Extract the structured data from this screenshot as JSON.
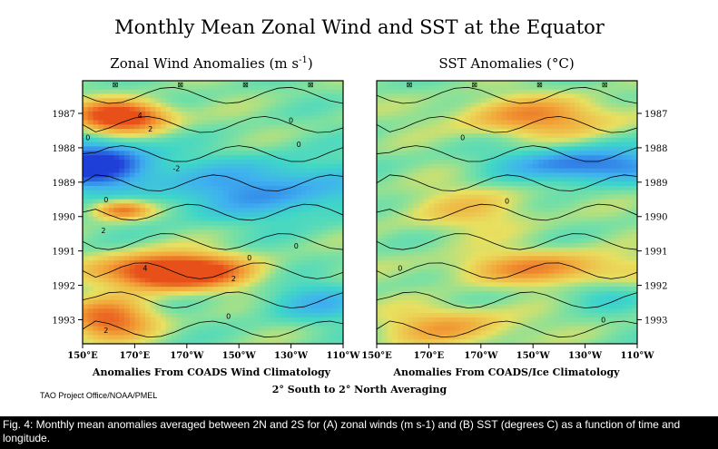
{
  "main_title": "Monthly Mean Zonal Wind and SST at the Equator",
  "credit": "TAO Project Office/NOAA/PMEL",
  "averaging_note": "2° South to 2° North Averaging",
  "caption": "Fig. 4: Monthly mean anomalies averaged between 2N and 2S for (A) zonal winds (m s-1) and (B) SST (degrees C) as a function of time and longitude.",
  "colors": {
    "strong_negative": "#1f3fd8",
    "negative": "#3fb0f0",
    "weak_negative": "#3fd6c8",
    "near_zero": "#7ee0a0",
    "weak_positive": "#e8e060",
    "positive": "#f2a83a",
    "strong_positive": "#e8501a",
    "contour": "#000000"
  },
  "chart_data": [
    {
      "type": "heatmap",
      "panel": "A",
      "title_text": "Zonal Wind Anomalies (m s",
      "title_sup": "-1",
      "title_end": ")",
      "xlabel": "Anomalies From COADS Wind Climatology",
      "x_tick_labels": [
        "150°E",
        "170°E",
        "170°W",
        "150°W",
        "130°W",
        "110°W"
      ],
      "x_tick_values": [
        150,
        170,
        190,
        210,
        230,
        250
      ],
      "xlim": [
        150,
        250
      ],
      "y_tick_labels": [
        "1987",
        "1988",
        "1989",
        "1990",
        "1991",
        "1992",
        "1993"
      ],
      "y_tick_values": [
        1987,
        1988,
        1989,
        1990,
        1991,
        1992,
        1993
      ],
      "ylim": [
        1993.7,
        1986.05
      ],
      "contour_labels": [
        {
          "text": "0",
          "x": 152,
          "y": 1987.7
        },
        {
          "text": "2",
          "x": 176,
          "y": 1987.45
        },
        {
          "text": "4",
          "x": 172,
          "y": 1987.05
        },
        {
          "text": "0",
          "x": 230,
          "y": 1987.2
        },
        {
          "text": "0",
          "x": 233,
          "y": 1987.9
        },
        {
          "text": "-2",
          "x": 186,
          "y": 1988.6
        },
        {
          "text": "0",
          "x": 159,
          "y": 1989.5
        },
        {
          "text": "2",
          "x": 158,
          "y": 1990.4
        },
        {
          "text": "0",
          "x": 214,
          "y": 1991.2
        },
        {
          "text": "0",
          "x": 232,
          "y": 1990.85
        },
        {
          "text": "4",
          "x": 174,
          "y": 1991.5
        },
        {
          "text": "2",
          "x": 208,
          "y": 1991.8
        },
        {
          "text": "0",
          "x": 206,
          "y": 1992.9
        },
        {
          "text": "2",
          "x": 159,
          "y": 1993.3
        }
      ],
      "anomalies": [
        {
          "center": [
            165,
            1987.1
          ],
          "radius": [
            12,
            0.3
          ],
          "value": 6
        },
        {
          "center": [
            155,
            1988.5
          ],
          "radius": [
            14,
            0.45
          ],
          "value": -6
        },
        {
          "center": [
            165,
            1989.8
          ],
          "radius": [
            8,
            0.2
          ],
          "value": 4
        },
        {
          "center": [
            185,
            1991.6
          ],
          "radius": [
            18,
            0.35
          ],
          "value": 7
        },
        {
          "center": [
            160,
            1993.0
          ],
          "radius": [
            12,
            0.4
          ],
          "value": 4
        },
        {
          "center": [
            220,
            1989.2
          ],
          "radius": [
            30,
            0.6
          ],
          "value": -3
        },
        {
          "center": [
            240,
            1992.5
          ],
          "radius": [
            15,
            0.4
          ],
          "value": -2
        }
      ],
      "tao_markers": [
        "⊠",
        "⊠",
        "⊠",
        "⊠"
      ]
    },
    {
      "type": "heatmap",
      "panel": "B",
      "title_text": "SST Anomalies (°C)",
      "xlabel": "Anomalies From COADS/Ice Climatology",
      "x_tick_labels": [
        "150°E",
        "170°E",
        "170°W",
        "150°W",
        "130°W",
        "110°W"
      ],
      "x_tick_values": [
        150,
        170,
        190,
        210,
        230,
        250
      ],
      "xlim": [
        150,
        250
      ],
      "y_tick_labels": [
        "1987",
        "1988",
        "1989",
        "1990",
        "1991",
        "1992",
        "1993"
      ],
      "y_tick_values": [
        1987,
        1988,
        1989,
        1990,
        1991,
        1992,
        1993
      ],
      "ylim": [
        1993.7,
        1986.05
      ],
      "contour_labels": [
        {
          "text": "0",
          "x": 183,
          "y": 1987.7
        },
        {
          "text": "0",
          "x": 200,
          "y": 1989.55
        },
        {
          "text": "0",
          "x": 159,
          "y": 1991.5
        },
        {
          "text": "0",
          "x": 237,
          "y": 1993.0
        }
      ],
      "anomalies": [
        {
          "center": [
            212,
            1987.1
          ],
          "radius": [
            22,
            0.4
          ],
          "value": 3
        },
        {
          "center": [
            232,
            1988.5
          ],
          "radius": [
            22,
            0.35
          ],
          "value": -4
        },
        {
          "center": [
            185,
            1989.8
          ],
          "radius": [
            20,
            0.5
          ],
          "value": 1.5
        },
        {
          "center": [
            215,
            1991.5
          ],
          "radius": [
            25,
            0.35
          ],
          "value": 3
        },
        {
          "center": [
            235,
            1992.3
          ],
          "radius": [
            12,
            0.3
          ],
          "value": -1
        },
        {
          "center": [
            178,
            1993.2
          ],
          "radius": [
            18,
            0.4
          ],
          "value": 2.5
        }
      ],
      "tao_markers": [
        "⊠",
        "⊠",
        "⊠",
        "⊠"
      ]
    }
  ]
}
